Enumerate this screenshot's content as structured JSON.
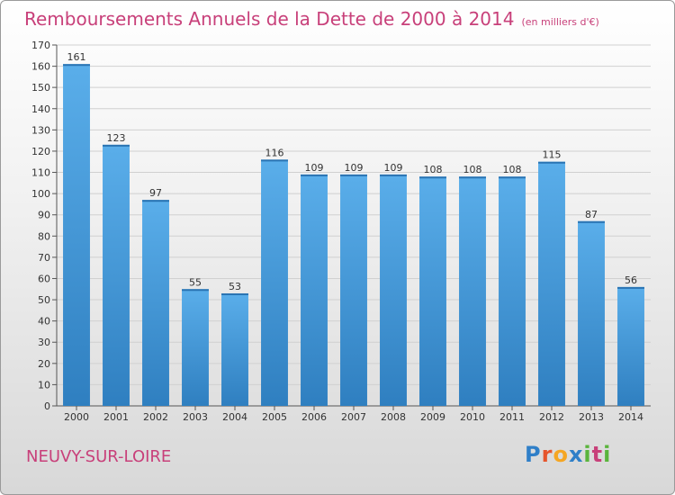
{
  "header": {
    "title": "Remboursements Annuels de la Dette de 2000 à 2014",
    "unit": "(en milliers d'€)"
  },
  "footer": {
    "commune": "NEUVY-SUR-LOIRE",
    "logo_text": "Proxiti"
  },
  "colors": {
    "title": "#c8407a",
    "bar_light": "#5aaeea",
    "bar_dark": "#2f7fc0"
  },
  "chart_data": {
    "type": "bar",
    "categories": [
      "2000",
      "2001",
      "2002",
      "2003",
      "2004",
      "2005",
      "2006",
      "2007",
      "2008",
      "2009",
      "2010",
      "2011",
      "2012",
      "2013",
      "2014"
    ],
    "values": [
      161,
      123,
      97,
      55,
      53,
      116,
      109,
      109,
      109,
      108,
      108,
      108,
      115,
      87,
      56
    ],
    "title": "Remboursements Annuels de la Dette de 2000 à 2014",
    "ylim": [
      0,
      170
    ],
    "yticks": [
      0,
      10,
      20,
      30,
      40,
      50,
      60,
      70,
      80,
      90,
      100,
      110,
      120,
      130,
      140,
      150,
      160,
      170
    ],
    "grid": true,
    "data_labels": true
  }
}
